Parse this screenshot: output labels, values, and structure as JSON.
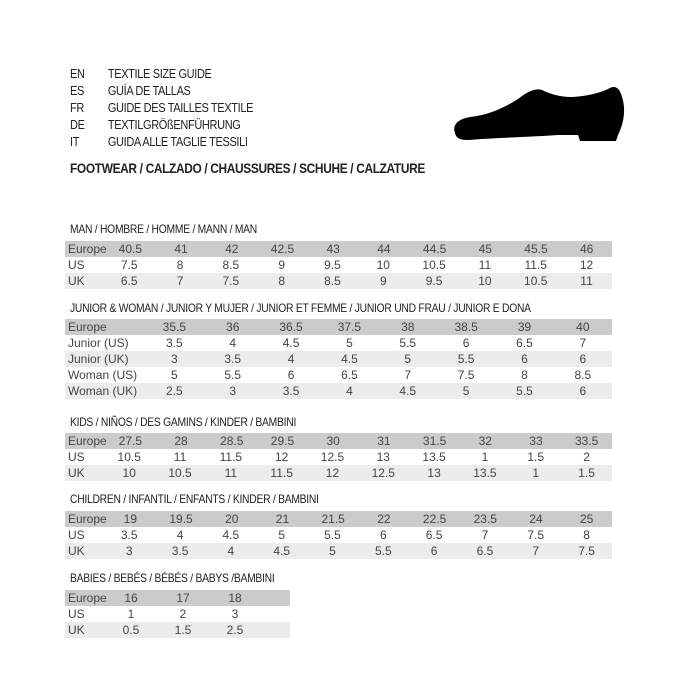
{
  "header": {
    "languages": [
      {
        "code": "EN",
        "title": "TEXTILE SIZE GUIDE"
      },
      {
        "code": "ES",
        "title": "GUÍA DE TALLAS"
      },
      {
        "code": "FR",
        "title": "GUIDE DES TAILLES TEXTILE"
      },
      {
        "code": "DE",
        "title": "TEXTILGRÖßENFÜHRUNG"
      },
      {
        "code": "IT",
        "title": "GUIDA ALLE TAGLIE TESSILI"
      }
    ],
    "footwear": "FOOTWEAR / CALZADO / CHAUSSURES / SCHUHE / CALZATURE",
    "shoe_icon": "shoe-silhouette-icon"
  },
  "sections": [
    {
      "title": "MAN / HOMBRE / HOMME / MANN / MAN",
      "rows": [
        {
          "label": "Europe",
          "values": [
            "40.5",
            "41",
            "42",
            "42.5",
            "43",
            "44",
            "44.5",
            "45",
            "45.5",
            "46"
          ]
        },
        {
          "label": "US",
          "values": [
            "7.5",
            "8",
            "8.5",
            "9",
            "9.5",
            "10",
            "10.5",
            "11",
            "11.5",
            "12"
          ]
        },
        {
          "label": "UK",
          "values": [
            "6.5",
            "7",
            "7.5",
            "8",
            "8.5",
            "9",
            "9.5",
            "10",
            "10.5",
            "11"
          ]
        }
      ]
    },
    {
      "title": "JUNIOR & WOMAN / JUNIOR Y MUJER / JUNIOR ET FEMME / JUNIOR UND FRAU / JUNIOR E DONA",
      "rows": [
        {
          "label": "Europe",
          "values": [
            "35.5",
            "36",
            "36.5",
            "37.5",
            "38",
            "38.5",
            "39",
            "40"
          ]
        },
        {
          "label": "Junior (US)",
          "values": [
            "3.5",
            "4",
            "4.5",
            "5",
            "5.5",
            "6",
            "6.5",
            "7"
          ]
        },
        {
          "label": "Junior (UK)",
          "values": [
            "3",
            "3.5",
            "4",
            "4.5",
            "5",
            "5.5",
            "6",
            "6"
          ]
        },
        {
          "label": "Woman (US)",
          "values": [
            "5",
            "5.5",
            "6",
            "6.5",
            "7",
            "7.5",
            "8",
            "8.5"
          ]
        },
        {
          "label": "Woman (UK)",
          "values": [
            "2.5",
            "3",
            "3.5",
            "4",
            "4.5",
            "5",
            "5.5",
            "6"
          ]
        }
      ]
    },
    {
      "title": "KIDS / NIÑOS / DES GAMINS / KINDER / BAMBINI",
      "rows": [
        {
          "label": "Europe",
          "values": [
            "27.5",
            "28",
            "28.5",
            "29.5",
            "30",
            "31",
            "31.5",
            "32",
            "33",
            "33.5"
          ]
        },
        {
          "label": "US",
          "values": [
            "10.5",
            "11",
            "11.5",
            "12",
            "12.5",
            "13",
            "13.5",
            "1",
            "1.5",
            "2"
          ]
        },
        {
          "label": "UK",
          "values": [
            "10",
            "10.5",
            "11",
            "11.5",
            "12",
            "12.5",
            "13",
            "13.5",
            "1",
            "1.5"
          ]
        }
      ]
    },
    {
      "title": "CHILDREN / INFANTIL / ENFANTS / KINDER / BAMBINI",
      "rows": [
        {
          "label": "Europe",
          "values": [
            "19",
            "19.5",
            "20",
            "21",
            "21.5",
            "22",
            "22.5",
            "23.5",
            "24",
            "25"
          ]
        },
        {
          "label": "US",
          "values": [
            "3.5",
            "4",
            "4.5",
            "5",
            "5.5",
            "6",
            "6.5",
            "7",
            "7.5",
            "8"
          ]
        },
        {
          "label": "UK",
          "values": [
            "3",
            "3.5",
            "4",
            "4.5",
            "5",
            "5.5",
            "6",
            "6.5",
            "7",
            "7.5"
          ]
        }
      ]
    },
    {
      "title": "BABIES  / BEBÉS / BÉBÉS / BABYS /BAMBINI",
      "rows": [
        {
          "label": "Europe",
          "values": [
            "16",
            "17",
            "18"
          ]
        },
        {
          "label": "US",
          "values": [
            "1",
            "2",
            "3"
          ]
        },
        {
          "label": "UK",
          "values": [
            "0.5",
            "1.5",
            "2.5"
          ]
        }
      ]
    }
  ]
}
